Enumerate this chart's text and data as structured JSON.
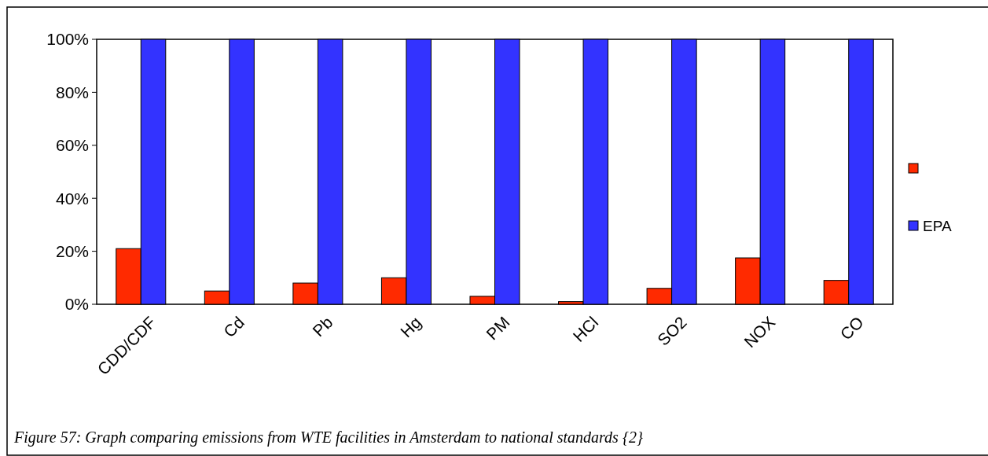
{
  "chart_data": {
    "type": "bar",
    "categories": [
      "CDD/CDF",
      "Cd",
      "Pb",
      "Hg",
      "PM",
      "HCl",
      "SO2",
      "NOX",
      "CO"
    ],
    "series": [
      {
        "color": "#ff2a00",
        "values": [
          21,
          5,
          8,
          10,
          3,
          1,
          6,
          17.5,
          9
        ]
      },
      {
        "name": "EPA",
        "color": "#3333ff",
        "values": [
          100,
          100,
          100,
          100,
          100,
          100,
          100,
          100,
          100
        ]
      }
    ],
    "ylim": [
      0,
      100
    ],
    "yticks": [
      {
        "value": 0,
        "label": "0%"
      },
      {
        "value": 20,
        "label": "20%"
      },
      {
        "value": 40,
        "label": "40%"
      },
      {
        "value": 60,
        "label": "60%"
      },
      {
        "value": 80,
        "label": "80%"
      },
      {
        "value": 100,
        "label": "100%"
      }
    ],
    "grid": false,
    "legend": "right",
    "annotations": [
      "Figure 57: Graph comparing emissions from WTE facilities in Amsterdam to national standards {2}"
    ]
  }
}
